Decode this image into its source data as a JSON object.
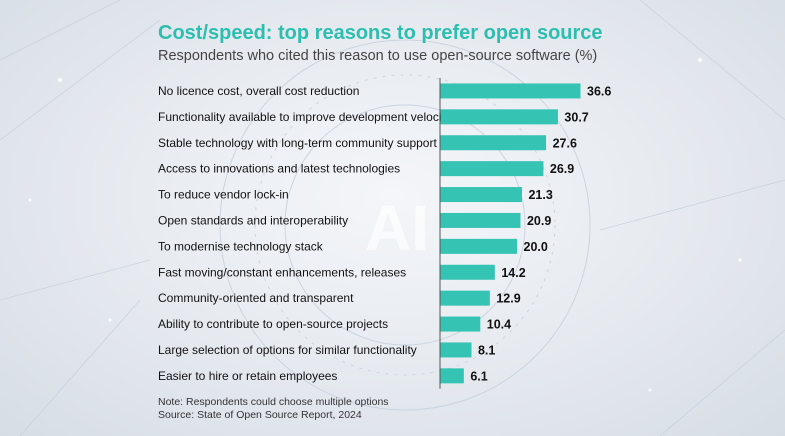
{
  "chart_data": {
    "type": "bar",
    "orientation": "horizontal",
    "title": "Cost/speed: top reasons to prefer open source",
    "subtitle": "Respondents who cited this reason to use open-source software (%)",
    "categories": [
      "No licence cost, overall cost reduction",
      "Functionality available to improve development velocity",
      "Stable technology with long-term community support",
      "Access to innovations and latest technologies",
      "To reduce vendor lock-in",
      "Open standards and interoperability",
      "To modernise technology stack",
      "Fast moving/constant enhancements, releases",
      "Community-oriented and transparent",
      "Ability to contribute to open-source projects",
      "Large selection of options for similar functionality",
      "Easier to hire or retain employees"
    ],
    "values": [
      36.6,
      30.7,
      27.6,
      26.9,
      21.3,
      20.9,
      20.0,
      14.2,
      12.9,
      10.4,
      8.1,
      6.1
    ],
    "value_labels": [
      "36.6",
      "30.7",
      "27.6",
      "26.9",
      "21.3",
      "20.9",
      "20.0",
      "14.2",
      "12.9",
      "10.4",
      "8.1",
      "6.1"
    ],
    "xlim": [
      0,
      40
    ],
    "bar_color": "#35c3b3",
    "grid": false,
    "legend": "none"
  },
  "notes": {
    "note": "Note: Respondents could choose multiple options",
    "source": "Source: State of Open Source Report, 2024"
  },
  "background_text": "AI"
}
